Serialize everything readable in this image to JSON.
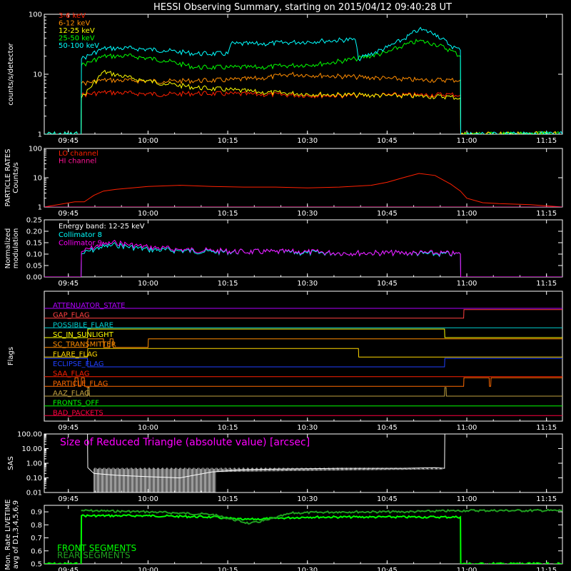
{
  "title": "HESSI Observing Summary, starting on 2015/04/12 09:40:28 UT",
  "colors": {
    "background": "#000000",
    "axes": "#ffffff"
  },
  "chart_data": [
    {
      "id": "lightcurves",
      "type": "line",
      "ylabel": "counts/s/detector",
      "yscale": "log",
      "ylim": [
        1,
        100
      ],
      "ytick_labels": [
        "1",
        "10",
        "100"
      ],
      "xlim": [
        9.6744,
        11.3
      ],
      "xtick_labels": [
        "09:45",
        "10:00",
        "10:15",
        "10:30",
        "10:45",
        "11:00",
        "11:15"
      ],
      "legend_position": "top-left",
      "series": [
        {
          "name": "3-6 keV",
          "color": "#ff2000",
          "x": [
            9.6744,
            9.79,
            9.791,
            9.86,
            9.95,
            10.05,
            10.15,
            10.25,
            10.35,
            10.45,
            10.55,
            10.65,
            10.75,
            10.85,
            10.95,
            10.98,
            10.981,
            11.3
          ],
          "y": [
            1,
            1,
            4.5,
            5,
            4.8,
            4.6,
            4.8,
            4.7,
            4.6,
            4.5,
            4.4,
            4.4,
            4.5,
            4.5,
            4.6,
            4.5,
            1,
            1
          ]
        },
        {
          "name": "6-12 keV",
          "color": "#ff8c00",
          "x": [
            9.6744,
            9.79,
            9.791,
            9.86,
            9.95,
            10.05,
            10.15,
            10.25,
            10.35,
            10.45,
            10.55,
            10.65,
            10.75,
            10.85,
            10.95,
            10.98,
            10.981,
            11.3
          ],
          "y": [
            1,
            1,
            7,
            8,
            7.8,
            7.6,
            7.8,
            8,
            8.5,
            10,
            9.5,
            9,
            8.5,
            8,
            8,
            8,
            1,
            1
          ]
        },
        {
          "name": "12-25 keV",
          "color": "#ffff00",
          "x": [
            9.6744,
            9.79,
            9.791,
            9.86,
            9.95,
            10.05,
            10.15,
            10.25,
            10.35,
            10.45,
            10.55,
            10.65,
            10.75,
            10.85,
            10.95,
            10.98,
            10.981,
            11.3
          ],
          "y": [
            1,
            1,
            4,
            11,
            8.5,
            7,
            6,
            5.5,
            5,
            4.8,
            4.6,
            4.5,
            4.4,
            4.3,
            4.2,
            4,
            1,
            1
          ]
        },
        {
          "name": "25-50 keV",
          "color": "#00ff00",
          "x": [
            9.6744,
            9.79,
            9.791,
            9.86,
            9.95,
            10.05,
            10.15,
            10.25,
            10.35,
            10.45,
            10.55,
            10.65,
            10.75,
            10.8,
            10.85,
            10.9,
            10.95,
            10.98,
            10.981,
            11.3
          ],
          "y": [
            1,
            1,
            14,
            20,
            20,
            17,
            13,
            13,
            13,
            14,
            15,
            18,
            23,
            30,
            36,
            32,
            25,
            20,
            1,
            1
          ]
        },
        {
          "name": "50-100 keV",
          "color": "#00ffff",
          "x": [
            9.6744,
            9.79,
            9.791,
            9.86,
            9.95,
            10.05,
            10.15,
            10.25,
            10.26,
            10.35,
            10.45,
            10.55,
            10.65,
            10.66,
            10.75,
            10.8,
            10.85,
            10.9,
            10.95,
            10.98,
            10.981,
            11.3
          ],
          "y": [
            1,
            1,
            18,
            27,
            27,
            25,
            22,
            22,
            32,
            32,
            34,
            36,
            38,
            18,
            28,
            38,
            56,
            48,
            30,
            25,
            1,
            1
          ]
        }
      ]
    },
    {
      "id": "particle",
      "type": "line",
      "ylabel": "PARTICLE RATES\nCounts/s",
      "yscale": "log",
      "ylim": [
        1,
        100
      ],
      "ytick_labels": [
        "1",
        "10",
        "100"
      ],
      "xlim": [
        9.6744,
        11.3
      ],
      "xtick_labels": [
        "09:45",
        "10:00",
        "10:15",
        "10:30",
        "10:45",
        "11:00",
        "11:15"
      ],
      "series": [
        {
          "name": "LO channel",
          "color": "#ff2000",
          "x": [
            9.6744,
            9.77,
            9.8,
            9.83,
            9.86,
            9.9,
            9.95,
            10.0,
            10.1,
            10.2,
            10.3,
            10.4,
            10.5,
            10.6,
            10.7,
            10.75,
            10.8,
            10.85,
            10.9,
            10.95,
            10.98,
            11.0,
            11.05,
            11.1,
            11.2,
            11.3
          ],
          "y": [
            1,
            1.5,
            1.5,
            2.5,
            3.5,
            4,
            4.5,
            5,
            5.5,
            5,
            4.8,
            4.8,
            4.5,
            4.8,
            5.5,
            7,
            10,
            14,
            12,
            6,
            3.5,
            2,
            1.4,
            1.3,
            1.2,
            1
          ]
        },
        {
          "name": "HI channel",
          "color": "#ff1493",
          "x": [
            9.6744,
            11.3
          ],
          "y": [
            1,
            1
          ]
        }
      ]
    },
    {
      "id": "modulation",
      "type": "line",
      "ylabel": "Normalized\nmodulation",
      "ylim": [
        0,
        0.25
      ],
      "ytick_labels": [
        "0.00",
        "0.05",
        "0.10",
        "0.15",
        "0.20",
        "0.25"
      ],
      "xlim": [
        9.6744,
        11.3
      ],
      "xtick_labels": [
        "09:45",
        "10:00",
        "10:15",
        "10:30",
        "10:45",
        "11:00",
        "11:15"
      ],
      "annotation": "Energy band: 12-25 keV",
      "series": [
        {
          "name": "Collimator 8",
          "color": "#00ffff",
          "x": [
            9.6744,
            9.79,
            9.791,
            9.85,
            9.9,
            10.0,
            10.1,
            10.2,
            10.3,
            10.4,
            10.5,
            10.6,
            10.7,
            10.8,
            10.9,
            10.98,
            10.981,
            11.3
          ],
          "y": [
            0,
            0,
            0.1,
            0.13,
            0.14,
            0.12,
            0.115,
            0.11,
            0.11,
            0.11,
            0.105,
            0.105,
            0.105,
            0.105,
            0.1,
            0.1,
            0,
            0
          ]
        },
        {
          "name": "Collimator 9",
          "color": "#ff00ff",
          "x": [
            9.6744,
            9.79,
            9.791,
            9.85,
            9.9,
            10.0,
            10.1,
            10.2,
            10.3,
            10.4,
            10.5,
            10.6,
            10.7,
            10.8,
            10.9,
            10.98,
            10.981,
            11.3
          ],
          "y": [
            0,
            0,
            0.11,
            0.14,
            0.15,
            0.13,
            0.12,
            0.115,
            0.11,
            0.11,
            0.11,
            0.105,
            0.105,
            0.105,
            0.105,
            0.1,
            0,
            0
          ]
        }
      ]
    },
    {
      "id": "flags",
      "type": "line",
      "ylabel": "Flags",
      "xlim": [
        9.6744,
        11.3
      ],
      "xtick_labels": [
        "09:45",
        "10:00",
        "10:15",
        "10:30",
        "10:45",
        "11:00",
        "11:15"
      ],
      "series": [
        {
          "name": "ATTENUATOR_STATE",
          "color": "#b000ff",
          "x": [
            9.6744,
            11.3
          ],
          "y": [
            0,
            0
          ]
        },
        {
          "name": "GAP_FLAG",
          "color": "#ff4040",
          "x": [
            9.6744,
            10.99,
            10.991,
            11.3
          ],
          "y": [
            0,
            0,
            1,
            1
          ]
        },
        {
          "name": "POSSIBLE_FLARE",
          "color": "#00d0d0",
          "x": [
            9.6744,
            11.3
          ],
          "y": [
            0,
            0
          ]
        },
        {
          "name": "SC_IN_SUNLIGHT",
          "color": "#ffff00",
          "x": [
            9.6744,
            9.81,
            9.811,
            10.93,
            10.931,
            11.3
          ],
          "y": [
            0,
            0,
            1,
            1,
            0,
            0
          ]
        },
        {
          "name": "SC_TRANSMITTER",
          "color": "#ff8c00",
          "x": [
            9.6744,
            9.81,
            9.811,
            9.86,
            9.861,
            9.88,
            9.881,
            9.89,
            9.891,
            10.0,
            10.001,
            11.3
          ],
          "y": [
            0,
            0,
            1,
            1,
            0,
            0,
            1,
            1,
            0,
            0,
            1,
            1
          ]
        },
        {
          "name": "FLARE_FLAG",
          "color": "#ffd700",
          "x": [
            9.6744,
            9.81,
            9.811,
            10.66,
            10.661,
            11.3
          ],
          "y": [
            0,
            0,
            1,
            1,
            0,
            0
          ]
        },
        {
          "name": "ECLIPSE_FLAG",
          "color": "#2040ff",
          "x": [
            9.6744,
            9.81,
            9.811,
            10.93,
            10.931,
            11.3
          ],
          "y": [
            1,
            1,
            0,
            0,
            1,
            1
          ]
        },
        {
          "name": "SAA_FLAG",
          "color": "#ff2000",
          "x": [
            9.6744,
            11.3
          ],
          "y": [
            0,
            0
          ]
        },
        {
          "name": "PARTICLE_FLAG",
          "color": "#ff6a00",
          "x": [
            9.6744,
            9.77,
            9.771,
            9.78,
            9.781,
            9.79,
            9.791,
            9.8,
            9.801,
            10.99,
            10.991,
            11.07,
            11.071,
            11.075,
            11.076,
            11.3
          ],
          "y": [
            0,
            0,
            1,
            1,
            0,
            0,
            1,
            1,
            0,
            0,
            1,
            1,
            0,
            0,
            1,
            1
          ]
        },
        {
          "name": "AAZ_FLAG",
          "color": "#c0a040",
          "x": [
            9.6744,
            9.81,
            9.811,
            9.815,
            9.816,
            10.93,
            10.931,
            10.935,
            10.936,
            11.3
          ],
          "y": [
            0,
            0,
            1,
            1,
            0,
            0,
            1,
            1,
            0,
            0
          ]
        },
        {
          "name": "FRONTS_OFF",
          "color": "#00ff00",
          "x": [
            9.6744,
            11.3
          ],
          "y": [
            0,
            0
          ]
        },
        {
          "name": "BAD_PACKETS",
          "color": "#ff0040",
          "x": [
            9.6744,
            11.3
          ],
          "y": [
            0,
            0
          ]
        }
      ]
    },
    {
      "id": "sas",
      "type": "line",
      "ylabel": "SAS",
      "yscale": "log",
      "ylim": [
        0.01,
        100
      ],
      "ytick_labels": [
        "0.01",
        "0.10",
        "1.00",
        "10.00",
        "100.00"
      ],
      "xlim": [
        9.6744,
        11.3
      ],
      "xtick_labels": [
        "09:45",
        "10:00",
        "10:15",
        "10:30",
        "10:45",
        "11:00",
        "11:15"
      ],
      "annotation": "Size of Reduced Triangle (absolute value) [arcsec]",
      "series": [
        {
          "name": "SAS",
          "color": "#ffffff",
          "x": [
            9.81,
            9.811,
            9.83,
            9.9,
            10.0,
            10.1,
            10.2,
            10.3,
            10.4,
            10.5,
            10.6,
            10.7,
            10.8,
            10.9,
            10.93,
            10.931
          ],
          "y": [
            100,
            0.5,
            0.2,
            0.15,
            0.12,
            0.1,
            0.25,
            0.35,
            0.4,
            0.42,
            0.45,
            0.45,
            0.45,
            0.5,
            0.45,
            100
          ]
        }
      ]
    },
    {
      "id": "livetime",
      "type": "line",
      "ylabel": "Mon. Rate LIVETIME\navg of D1,3,4,5,6,9",
      "ylim": [
        0.5,
        0.95
      ],
      "ytick_labels": [
        "0.5",
        "0.6",
        "0.7",
        "0.8",
        "0.9"
      ],
      "xlim": [
        9.6744,
        11.3
      ],
      "xtick_labels": [
        "09:45",
        "10:00",
        "10:15",
        "10:30",
        "10:45",
        "11:00",
        "11:15"
      ],
      "series": [
        {
          "name": "FRONT SEGMENTS",
          "color": "#00ff00",
          "x": [
            9.6744,
            9.79,
            9.791,
            10.0,
            10.2,
            10.3,
            10.4,
            10.5,
            10.7,
            10.9,
            10.98,
            10.981,
            11.3
          ],
          "y": [
            0.5,
            0.5,
            0.87,
            0.87,
            0.86,
            0.84,
            0.85,
            0.86,
            0.86,
            0.86,
            0.86,
            0.5,
            0.5
          ]
        },
        {
          "name": "REAR SEGMENTS",
          "color": "#20a020",
          "x": [
            9.79,
            10.0,
            10.2,
            10.25,
            10.32,
            10.38,
            10.45,
            10.6,
            10.8,
            11.0,
            11.3
          ],
          "y": [
            0.91,
            0.9,
            0.88,
            0.85,
            0.81,
            0.84,
            0.89,
            0.9,
            0.9,
            0.91,
            0.91
          ]
        }
      ]
    }
  ]
}
